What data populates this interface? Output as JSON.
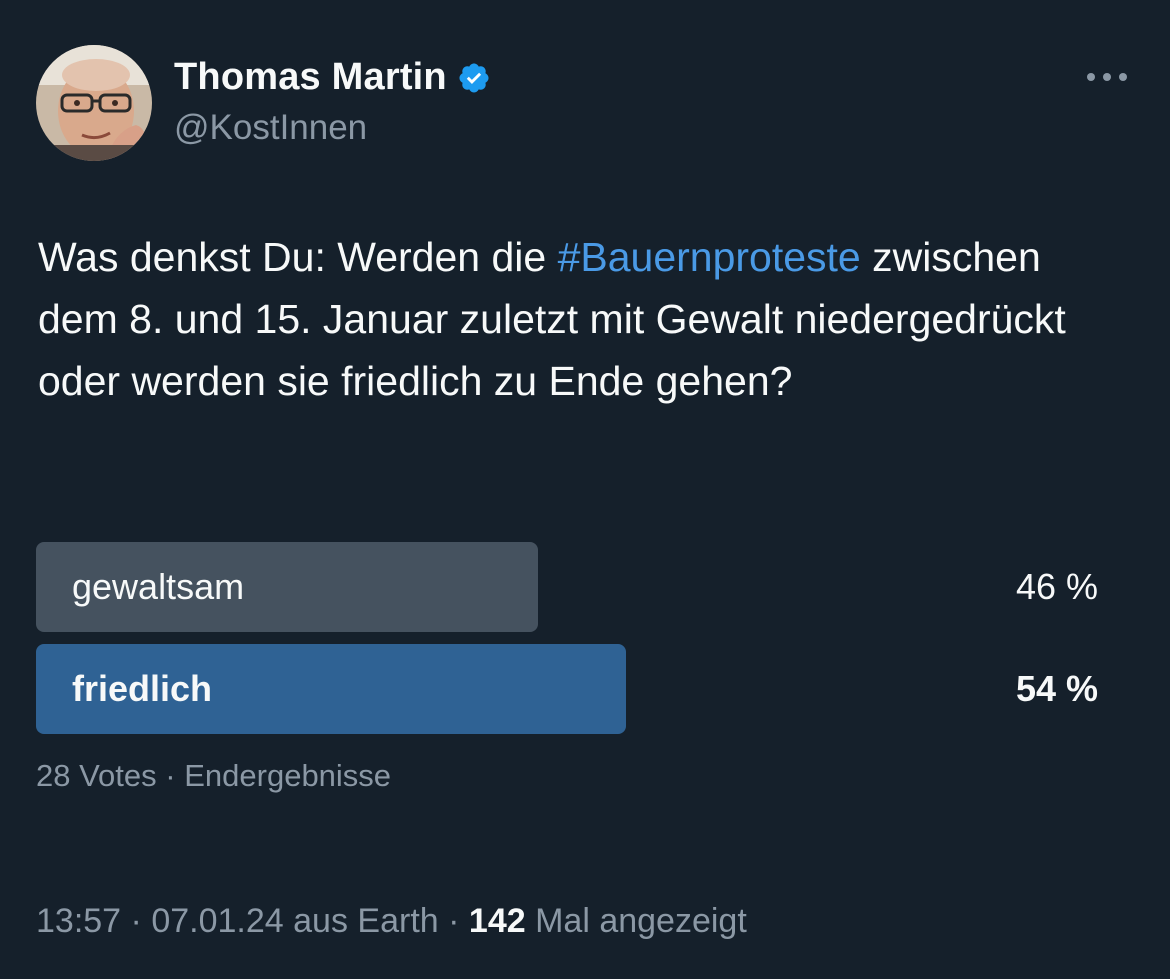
{
  "author": {
    "display_name": "Thomas Martin",
    "handle": "@KostInnen",
    "verified": true,
    "verified_color": "#1d9bf0"
  },
  "tweet": {
    "text_before": "Was denkst Du: Werden die ",
    "hashtag": "#Bauernproteste",
    "text_after": " zwischen dem 8. und 15. Januar zuletzt mit Gewalt niedergedrückt oder werden sie friedlich zu Ende gehen?"
  },
  "poll": {
    "options": [
      {
        "label": "gewaltsam",
        "percent_text": "46 %",
        "share": 0.46,
        "winner": false
      },
      {
        "label": "friedlich",
        "percent_text": "54 %",
        "share": 0.54,
        "winner": true
      }
    ],
    "votes": "28 Votes",
    "separator": "·",
    "status": "Endergebnisse"
  },
  "footer": {
    "time": "13:57",
    "date": "07.01.24",
    "source": "aus Earth",
    "views_count": "142",
    "views_label": "Mal angezeigt",
    "separator": "·"
  },
  "colors": {
    "background": "#15202b",
    "hashtag": "#4a9ae6",
    "winner_bar": "#2f6294",
    "loser_bar": "#45525f",
    "secondary_text": "#8b98a5"
  },
  "icons": {
    "verified": "verified-badge-icon",
    "more": "more-options-icon"
  }
}
